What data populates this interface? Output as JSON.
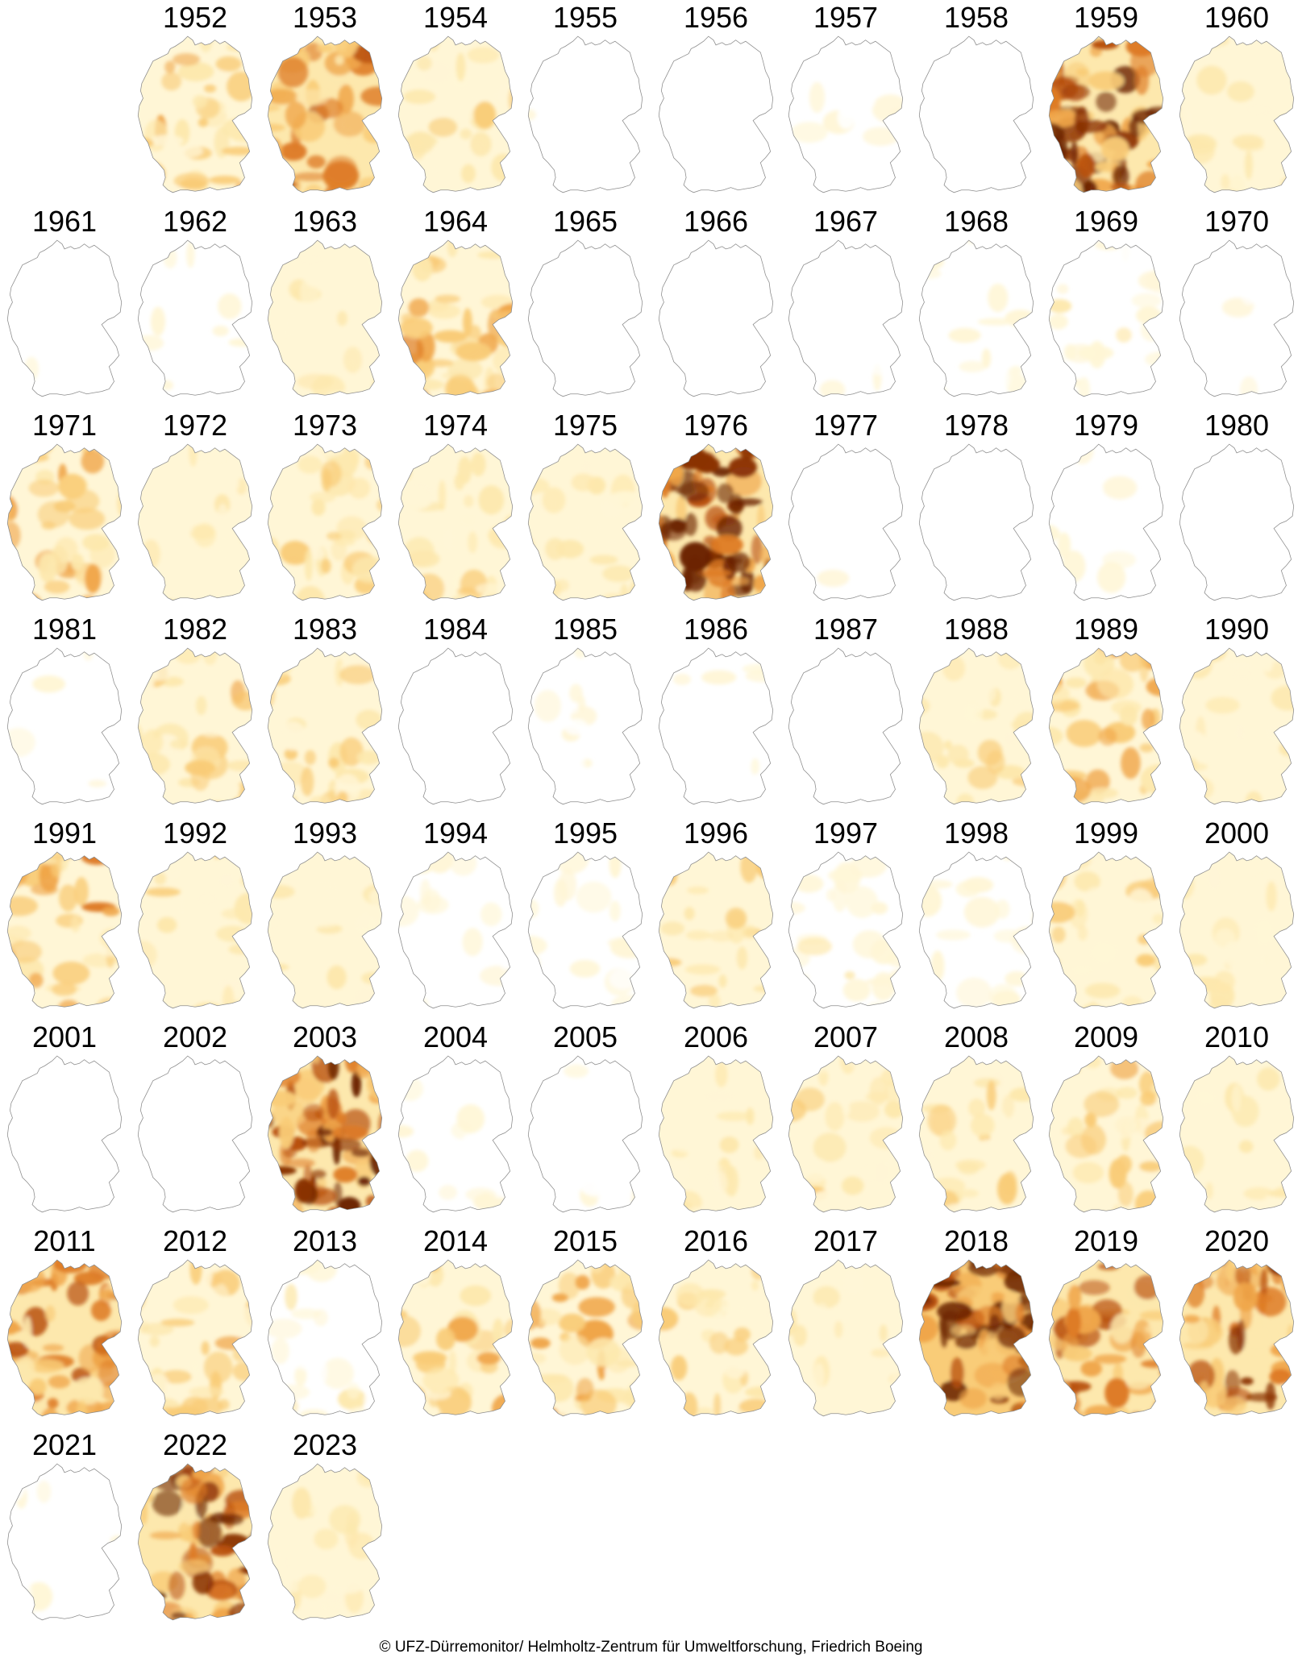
{
  "palette": [
    "#ffffff",
    "#fff6d6",
    "#fde8ad",
    "#f9cc78",
    "#f0a64a",
    "#de7b25",
    "#b9510f",
    "#8a3106",
    "#6b2303"
  ],
  "outline_color": "#8c8c8c",
  "years": [
    {
      "year": "1952",
      "drought": 0.35
    },
    {
      "year": "1953",
      "drought": 0.55
    },
    {
      "year": "1954",
      "drought": 0.25
    },
    {
      "year": "1955",
      "drought": 0.05
    },
    {
      "year": "1956",
      "drought": 0.02
    },
    {
      "year": "1957",
      "drought": 0.08
    },
    {
      "year": "1958",
      "drought": 0.02
    },
    {
      "year": "1959",
      "drought": 0.85
    },
    {
      "year": "1960",
      "drought": 0.22
    },
    {
      "year": "1961",
      "drought": 0.05
    },
    {
      "year": "1962",
      "drought": 0.1
    },
    {
      "year": "1963",
      "drought": 0.18
    },
    {
      "year": "1964",
      "drought": 0.45
    },
    {
      "year": "1965",
      "drought": 0.02
    },
    {
      "year": "1966",
      "drought": 0.02
    },
    {
      "year": "1967",
      "drought": 0.05
    },
    {
      "year": "1968",
      "drought": 0.1
    },
    {
      "year": "1969",
      "drought": 0.15
    },
    {
      "year": "1970",
      "drought": 0.05
    },
    {
      "year": "1971",
      "drought": 0.4
    },
    {
      "year": "1972",
      "drought": 0.2
    },
    {
      "year": "1973",
      "drought": 0.35
    },
    {
      "year": "1974",
      "drought": 0.32
    },
    {
      "year": "1975",
      "drought": 0.2
    },
    {
      "year": "1976",
      "drought": 0.88
    },
    {
      "year": "1977",
      "drought": 0.05
    },
    {
      "year": "1978",
      "drought": 0.05
    },
    {
      "year": "1979",
      "drought": 0.06
    },
    {
      "year": "1980",
      "drought": 0.03
    },
    {
      "year": "1981",
      "drought": 0.06
    },
    {
      "year": "1982",
      "drought": 0.35
    },
    {
      "year": "1983",
      "drought": 0.3
    },
    {
      "year": "1984",
      "drought": 0.02
    },
    {
      "year": "1985",
      "drought": 0.08
    },
    {
      "year": "1986",
      "drought": 0.06
    },
    {
      "year": "1987",
      "drought": 0.01
    },
    {
      "year": "1988",
      "drought": 0.25
    },
    {
      "year": "1989",
      "drought": 0.4
    },
    {
      "year": "1990",
      "drought": 0.22
    },
    {
      "year": "1991",
      "drought": 0.45
    },
    {
      "year": "1992",
      "drought": 0.25
    },
    {
      "year": "1993",
      "drought": 0.18
    },
    {
      "year": "1994",
      "drought": 0.1
    },
    {
      "year": "1995",
      "drought": 0.12
    },
    {
      "year": "1996",
      "drought": 0.3
    },
    {
      "year": "1997",
      "drought": 0.15
    },
    {
      "year": "1998",
      "drought": 0.12
    },
    {
      "year": "1999",
      "drought": 0.28
    },
    {
      "year": "2000",
      "drought": 0.2
    },
    {
      "year": "2001",
      "drought": 0.04
    },
    {
      "year": "2002",
      "drought": 0.02
    },
    {
      "year": "2003",
      "drought": 0.8
    },
    {
      "year": "2004",
      "drought": 0.08
    },
    {
      "year": "2005",
      "drought": 0.06
    },
    {
      "year": "2006",
      "drought": 0.18
    },
    {
      "year": "2007",
      "drought": 0.25
    },
    {
      "year": "2008",
      "drought": 0.28
    },
    {
      "year": "2009",
      "drought": 0.35
    },
    {
      "year": "2010",
      "drought": 0.18
    },
    {
      "year": "2011",
      "drought": 0.6
    },
    {
      "year": "2012",
      "drought": 0.35
    },
    {
      "year": "2013",
      "drought": 0.15
    },
    {
      "year": "2014",
      "drought": 0.38
    },
    {
      "year": "2015",
      "drought": 0.45
    },
    {
      "year": "2016",
      "drought": 0.3
    },
    {
      "year": "2017",
      "drought": 0.22
    },
    {
      "year": "2018",
      "drought": 0.9
    },
    {
      "year": "2019",
      "drought": 0.6
    },
    {
      "year": "2020",
      "drought": 0.68
    },
    {
      "year": "2021",
      "drought": 0.06
    },
    {
      "year": "2022",
      "drought": 0.8
    },
    {
      "year": "2023",
      "drought": 0.22
    }
  ],
  "credit": "© UFZ-Dürremonitor/ Helmholtz-Zentrum für Umweltforschung, Friedrich Boeing"
}
